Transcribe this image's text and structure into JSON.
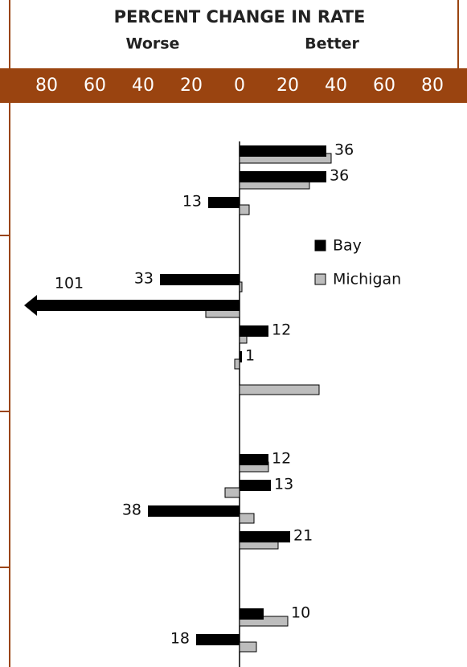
{
  "chart_data": {
    "type": "bar",
    "orientation": "horizontal",
    "title": "PERCENT CHANGE IN RATE",
    "left_label": "Worse",
    "right_label": "Better",
    "categories": [
      null,
      null,
      null,
      null,
      null,
      null,
      null,
      null,
      null,
      null,
      null,
      null,
      null,
      null,
      null,
      null,
      null,
      null,
      null,
      null
    ],
    "series": [
      {
        "name": "Michigan",
        "color": "#bdbdbd",
        "values": [
          38,
          29,
          4,
          null,
          null,
          1,
          -14,
          3,
          -2,
          33,
          null,
          null,
          12,
          -6,
          6,
          16,
          null,
          null,
          20,
          7
        ]
      },
      {
        "name": "Bay",
        "color": "#000000",
        "values": [
          36,
          36,
          -13,
          null,
          null,
          -33,
          -101,
          12,
          1,
          null,
          null,
          null,
          12,
          13,
          -38,
          21,
          null,
          null,
          10,
          -18
        ],
        "value_labels": [
          "36",
          "36",
          "13",
          null,
          null,
          "33",
          "101",
          "12",
          "1",
          null,
          null,
          null,
          "12",
          "13",
          "38",
          "21",
          null,
          null,
          "10",
          "18"
        ]
      }
    ],
    "xlim": [
      -95,
      90
    ],
    "xticks": [
      {
        "value": -80,
        "label": "80"
      },
      {
        "value": -60,
        "label": "60"
      },
      {
        "value": -40,
        "label": "40"
      },
      {
        "value": -20,
        "label": "20"
      },
      0,
      20,
      40,
      60,
      80
    ]
  }
}
